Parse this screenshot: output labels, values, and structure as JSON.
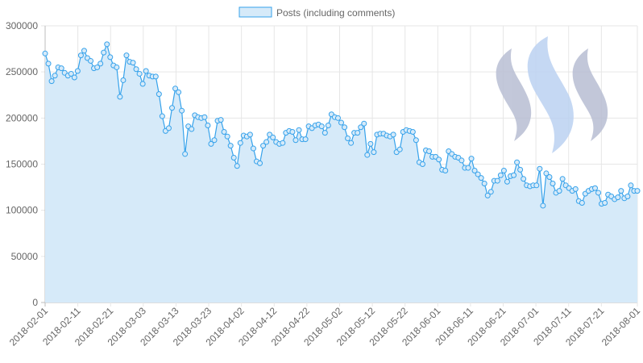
{
  "chart_data": {
    "type": "area",
    "title": "",
    "xlabel": "",
    "ylabel": "",
    "ylim": [
      0,
      300000
    ],
    "yticks": [
      0,
      50000,
      100000,
      150000,
      200000,
      250000,
      300000
    ],
    "y_tick_labels": [
      "0",
      "50000",
      "100000",
      "150000",
      "200000",
      "250000",
      "300000"
    ],
    "x_tick_labels": [
      "2018-02-01",
      "2018-02-11",
      "2018-02-21",
      "2018-03-03",
      "2018-03-13",
      "2018-03-23",
      "2018-04-02",
      "2018-04-12",
      "2018-04-22",
      "2018-05-02",
      "2018-05-12",
      "2018-05-22",
      "2018-06-01",
      "2018-06-11",
      "2018-06-21",
      "2018-07-01",
      "2018-07-11",
      "2018-07-21",
      "2018-08-01"
    ],
    "x_start": "2018-02-01",
    "x_end": "2018-08-01",
    "grid": true,
    "legend_position": "top",
    "colors": {
      "line": "#36a2eb",
      "fill": "#d6eaf9",
      "grid": "#e6e6e6",
      "axis": "#bdbdbd"
    },
    "series": [
      {
        "name": "Posts (including comments)",
        "values": [
          270000,
          259000,
          240000,
          246000,
          255000,
          254000,
          249000,
          246000,
          248000,
          244000,
          251000,
          268000,
          273000,
          265000,
          262000,
          254000,
          255000,
          259000,
          271000,
          280000,
          266000,
          257000,
          255000,
          223000,
          241000,
          268000,
          261000,
          260000,
          253000,
          248000,
          237000,
          251000,
          246000,
          245000,
          245000,
          226000,
          202000,
          186000,
          189000,
          211000,
          232000,
          228000,
          208000,
          161000,
          191000,
          188000,
          203000,
          201000,
          200000,
          201000,
          192000,
          172000,
          176000,
          197000,
          198000,
          185000,
          180000,
          170000,
          157000,
          148000,
          173000,
          181000,
          180000,
          182000,
          167000,
          153000,
          151000,
          170000,
          174000,
          182000,
          179000,
          174000,
          172000,
          173000,
          184000,
          186000,
          185000,
          176000,
          187000,
          177000,
          177000,
          191000,
          189000,
          192000,
          193000,
          191000,
          184000,
          192000,
          204000,
          201000,
          200000,
          195000,
          190000,
          178000,
          173000,
          184000,
          184000,
          190000,
          194000,
          160000,
          172000,
          163000,
          182000,
          183000,
          183000,
          181000,
          180000,
          182000,
          163000,
          166000,
          185000,
          187000,
          186000,
          185000,
          176000,
          152000,
          150000,
          165000,
          164000,
          158000,
          158000,
          155000,
          144000,
          143000,
          164000,
          161000,
          158000,
          157000,
          154000,
          146000,
          146000,
          156000,
          143000,
          139000,
          135000,
          129000,
          116000,
          120000,
          132000,
          132000,
          138000,
          143000,
          131000,
          137000,
          138000,
          152000,
          144000,
          134000,
          127000,
          126000,
          127000,
          127000,
          145000,
          105000,
          140000,
          136000,
          129000,
          119000,
          121000,
          134000,
          127000,
          124000,
          121000,
          123000,
          110000,
          108000,
          118000,
          121000,
          123000,
          124000,
          119000,
          107000,
          108000,
          117000,
          115000,
          112000,
          114000,
          121000,
          113000,
          115000,
          127000,
          121000,
          121000
        ]
      }
    ]
  }
}
